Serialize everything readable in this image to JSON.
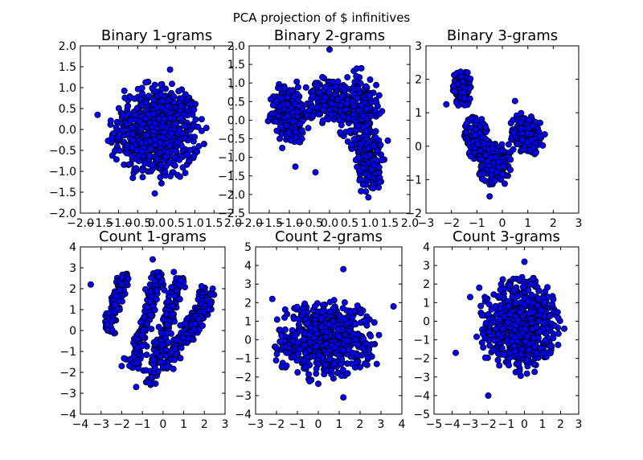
{
  "figure": {
    "suptitle": "PCA projection of $ infinitives",
    "point_color": "#0000ff",
    "edge_color": "#000000"
  },
  "chart_data": [
    {
      "type": "scatter",
      "title": "Binary 1-grams",
      "xlim": [
        -2.0,
        2.0
      ],
      "ylim": [
        -2.0,
        2.0
      ],
      "xticks": [
        "−2.0",
        "−1.5",
        "−1.0",
        "−0.5",
        "0.0",
        "0.5",
        "1.0",
        "1.5",
        "2.0"
      ],
      "yticks": [
        "−2.0",
        "−1.5",
        "−1.0",
        "−0.5",
        "0.0",
        "0.5",
        "1.0",
        "1.5",
        "2.0"
      ],
      "xtick_values": [
        -2.0,
        -1.5,
        -1.0,
        -0.5,
        0.0,
        0.5,
        1.0,
        1.5,
        2.0
      ],
      "ytick_values": [
        -2.0,
        -1.5,
        -1.0,
        -0.5,
        0.0,
        0.5,
        1.0,
        1.5,
        2.0
      ],
      "grid": false,
      "clusters": [
        {
          "cx": 0.0,
          "cy": -0.05,
          "rx": 1.25,
          "ry": 1.25,
          "n": 650
        }
      ],
      "outliers": [
        [
          -0.05,
          -1.53
        ],
        [
          0.35,
          1.43
        ],
        [
          -1.55,
          0.35
        ]
      ]
    },
    {
      "type": "scatter",
      "title": "Binary 2-grams",
      "xlim": [
        -2.0,
        2.0
      ],
      "ylim": [
        -2.5,
        2.0
      ],
      "xticks": [
        "−2.0",
        "−1.5",
        "−1.0",
        "−0.5",
        "0.0",
        "0.5",
        "1.0",
        "1.5",
        "2.0"
      ],
      "yticks": [
        "−2.5",
        "−2.0",
        "−1.5",
        "−1.0",
        "−0.5",
        "0.0",
        "0.5",
        "1.0",
        "1.5",
        "2.0"
      ],
      "xtick_values": [
        -2.0,
        -1.5,
        -1.0,
        -0.5,
        0.0,
        0.5,
        1.0,
        1.5,
        2.0
      ],
      "ytick_values": [
        -2.5,
        -2.0,
        -1.5,
        -1.0,
        -0.5,
        0.0,
        0.5,
        1.0,
        1.5,
        2.0
      ],
      "grid": false,
      "clusters": [
        {
          "cx": -1.0,
          "cy": 0.15,
          "rx": 0.55,
          "ry": 0.9,
          "n": 260
        },
        {
          "cx": 0.0,
          "cy": 0.55,
          "rx": 0.65,
          "ry": 0.65,
          "n": 170
        },
        {
          "cx": 0.75,
          "cy": 0.25,
          "rx": 0.55,
          "ry": 1.1,
          "n": 230
        },
        {
          "cx": 1.0,
          "cy": -1.2,
          "rx": 0.35,
          "ry": 0.9,
          "n": 150
        }
      ],
      "outliers": [
        [
          0.0,
          1.9
        ],
        [
          1.45,
          -0.55
        ],
        [
          -0.35,
          -1.4
        ],
        [
          -0.85,
          -1.25
        ]
      ]
    },
    {
      "type": "scatter",
      "title": "Binary 3-grams",
      "xlim": [
        -3,
        3
      ],
      "ylim": [
        -2,
        3
      ],
      "xticks": [
        "−3",
        "−2",
        "−1",
        "0",
        "1",
        "2",
        "3"
      ],
      "yticks": [
        "−2",
        "−1",
        "0",
        "1",
        "2",
        "3"
      ],
      "xtick_values": [
        -3,
        -2,
        -1,
        0,
        1,
        2,
        3
      ],
      "ytick_values": [
        -2,
        -1,
        0,
        1,
        2,
        3
      ],
      "grid": false,
      "clusters": [
        {
          "cx": -1.6,
          "cy": 1.75,
          "rx": 0.4,
          "ry": 0.6,
          "n": 120
        },
        {
          "cx": -1.0,
          "cy": 0.3,
          "rx": 0.5,
          "ry": 0.7,
          "n": 140
        },
        {
          "cx": -0.3,
          "cy": -0.5,
          "rx": 0.7,
          "ry": 0.7,
          "n": 220
        },
        {
          "cx": 0.95,
          "cy": 0.35,
          "rx": 0.75,
          "ry": 0.65,
          "n": 200
        }
      ],
      "outliers": [
        [
          0.5,
          1.35
        ],
        [
          -2.2,
          1.25
        ],
        [
          -0.5,
          -1.5
        ]
      ]
    },
    {
      "type": "scatter",
      "title": "Count 1-grams",
      "xlim": [
        -4,
        3
      ],
      "ylim": [
        -4,
        4
      ],
      "xticks": [
        "−4",
        "−3",
        "−2",
        "−1",
        "0",
        "1",
        "2",
        "3"
      ],
      "yticks": [
        "−4",
        "−3",
        "−2",
        "−1",
        "0",
        "1",
        "2",
        "3",
        "4"
      ],
      "xtick_values": [
        -4,
        -3,
        -2,
        -1,
        0,
        1,
        2,
        3
      ],
      "ytick_values": [
        -4,
        -3,
        -2,
        -1,
        0,
        1,
        2,
        3,
        4
      ],
      "grid": false,
      "bands": [
        {
          "x0": -2.7,
          "y0": 0.0,
          "x1": -1.8,
          "y1": 2.8,
          "w": 0.25,
          "n": 110
        },
        {
          "x0": -1.5,
          "y0": -1.8,
          "x1": -0.2,
          "y1": 2.8,
          "w": 0.3,
          "n": 180
        },
        {
          "x0": -0.7,
          "y0": -2.6,
          "x1": 0.9,
          "y1": 2.7,
          "w": 0.3,
          "n": 200
        },
        {
          "x0": 0.0,
          "y0": -2.0,
          "x1": 2.2,
          "y1": 2.0,
          "w": 0.3,
          "n": 170
        },
        {
          "x0": 1.0,
          "y0": -0.6,
          "x1": 2.3,
          "y1": 1.4,
          "w": 0.25,
          "n": 90
        }
      ],
      "outliers": [
        [
          -3.5,
          2.2
        ],
        [
          -0.5,
          3.4
        ],
        [
          2.4,
          2.0
        ],
        [
          -2.0,
          -1.7
        ],
        [
          -1.3,
          -2.7
        ]
      ]
    },
    {
      "type": "scatter",
      "title": "Count 2-grams",
      "xlim": [
        -3,
        4
      ],
      "ylim": [
        -4,
        5
      ],
      "xticks": [
        "−3",
        "−2",
        "−1",
        "0",
        "1",
        "2",
        "3",
        "4"
      ],
      "yticks": [
        "−4",
        "−3",
        "−2",
        "−1",
        "0",
        "1",
        "2",
        "3",
        "4",
        "5"
      ],
      "xtick_values": [
        -3,
        -2,
        -1,
        0,
        1,
        2,
        3,
        4
      ],
      "ytick_values": [
        -4,
        -3,
        -2,
        -1,
        0,
        1,
        2,
        3,
        4,
        5
      ],
      "grid": false,
      "clusters": [
        {
          "cx": 0.3,
          "cy": 0.0,
          "rx": 2.5,
          "ry": 2.3,
          "n": 600
        }
      ],
      "outliers": [
        [
          1.2,
          3.8
        ],
        [
          3.6,
          1.8
        ],
        [
          1.2,
          -3.1
        ],
        [
          2.8,
          -1.3
        ],
        [
          -2.2,
          2.2
        ]
      ]
    },
    {
      "type": "scatter",
      "title": "Count 3-grams",
      "xlim": [
        -5,
        3
      ],
      "ylim": [
        -5,
        4
      ],
      "xticks": [
        "−5",
        "−4",
        "−3",
        "−2",
        "−1",
        "0",
        "1",
        "2",
        "3"
      ],
      "yticks": [
        "−5",
        "−4",
        "−3",
        "−2",
        "−1",
        "0",
        "1",
        "2",
        "3",
        "4"
      ],
      "xtick_values": [
        -5,
        -4,
        -3,
        -2,
        -1,
        0,
        1,
        2,
        3
      ],
      "ytick_values": [
        -5,
        -4,
        -3,
        -2,
        -1,
        0,
        1,
        2,
        3,
        4
      ],
      "grid": false,
      "clusters": [
        {
          "cx": -0.3,
          "cy": -0.2,
          "rx": 2.3,
          "ry": 2.7,
          "n": 620
        }
      ],
      "outliers": [
        [
          -3.8,
          -1.7
        ],
        [
          -2.0,
          -4.0
        ],
        [
          0.0,
          3.2
        ],
        [
          -3.0,
          1.3
        ],
        [
          -2.5,
          1.8
        ],
        [
          2.2,
          -0.4
        ]
      ]
    }
  ]
}
